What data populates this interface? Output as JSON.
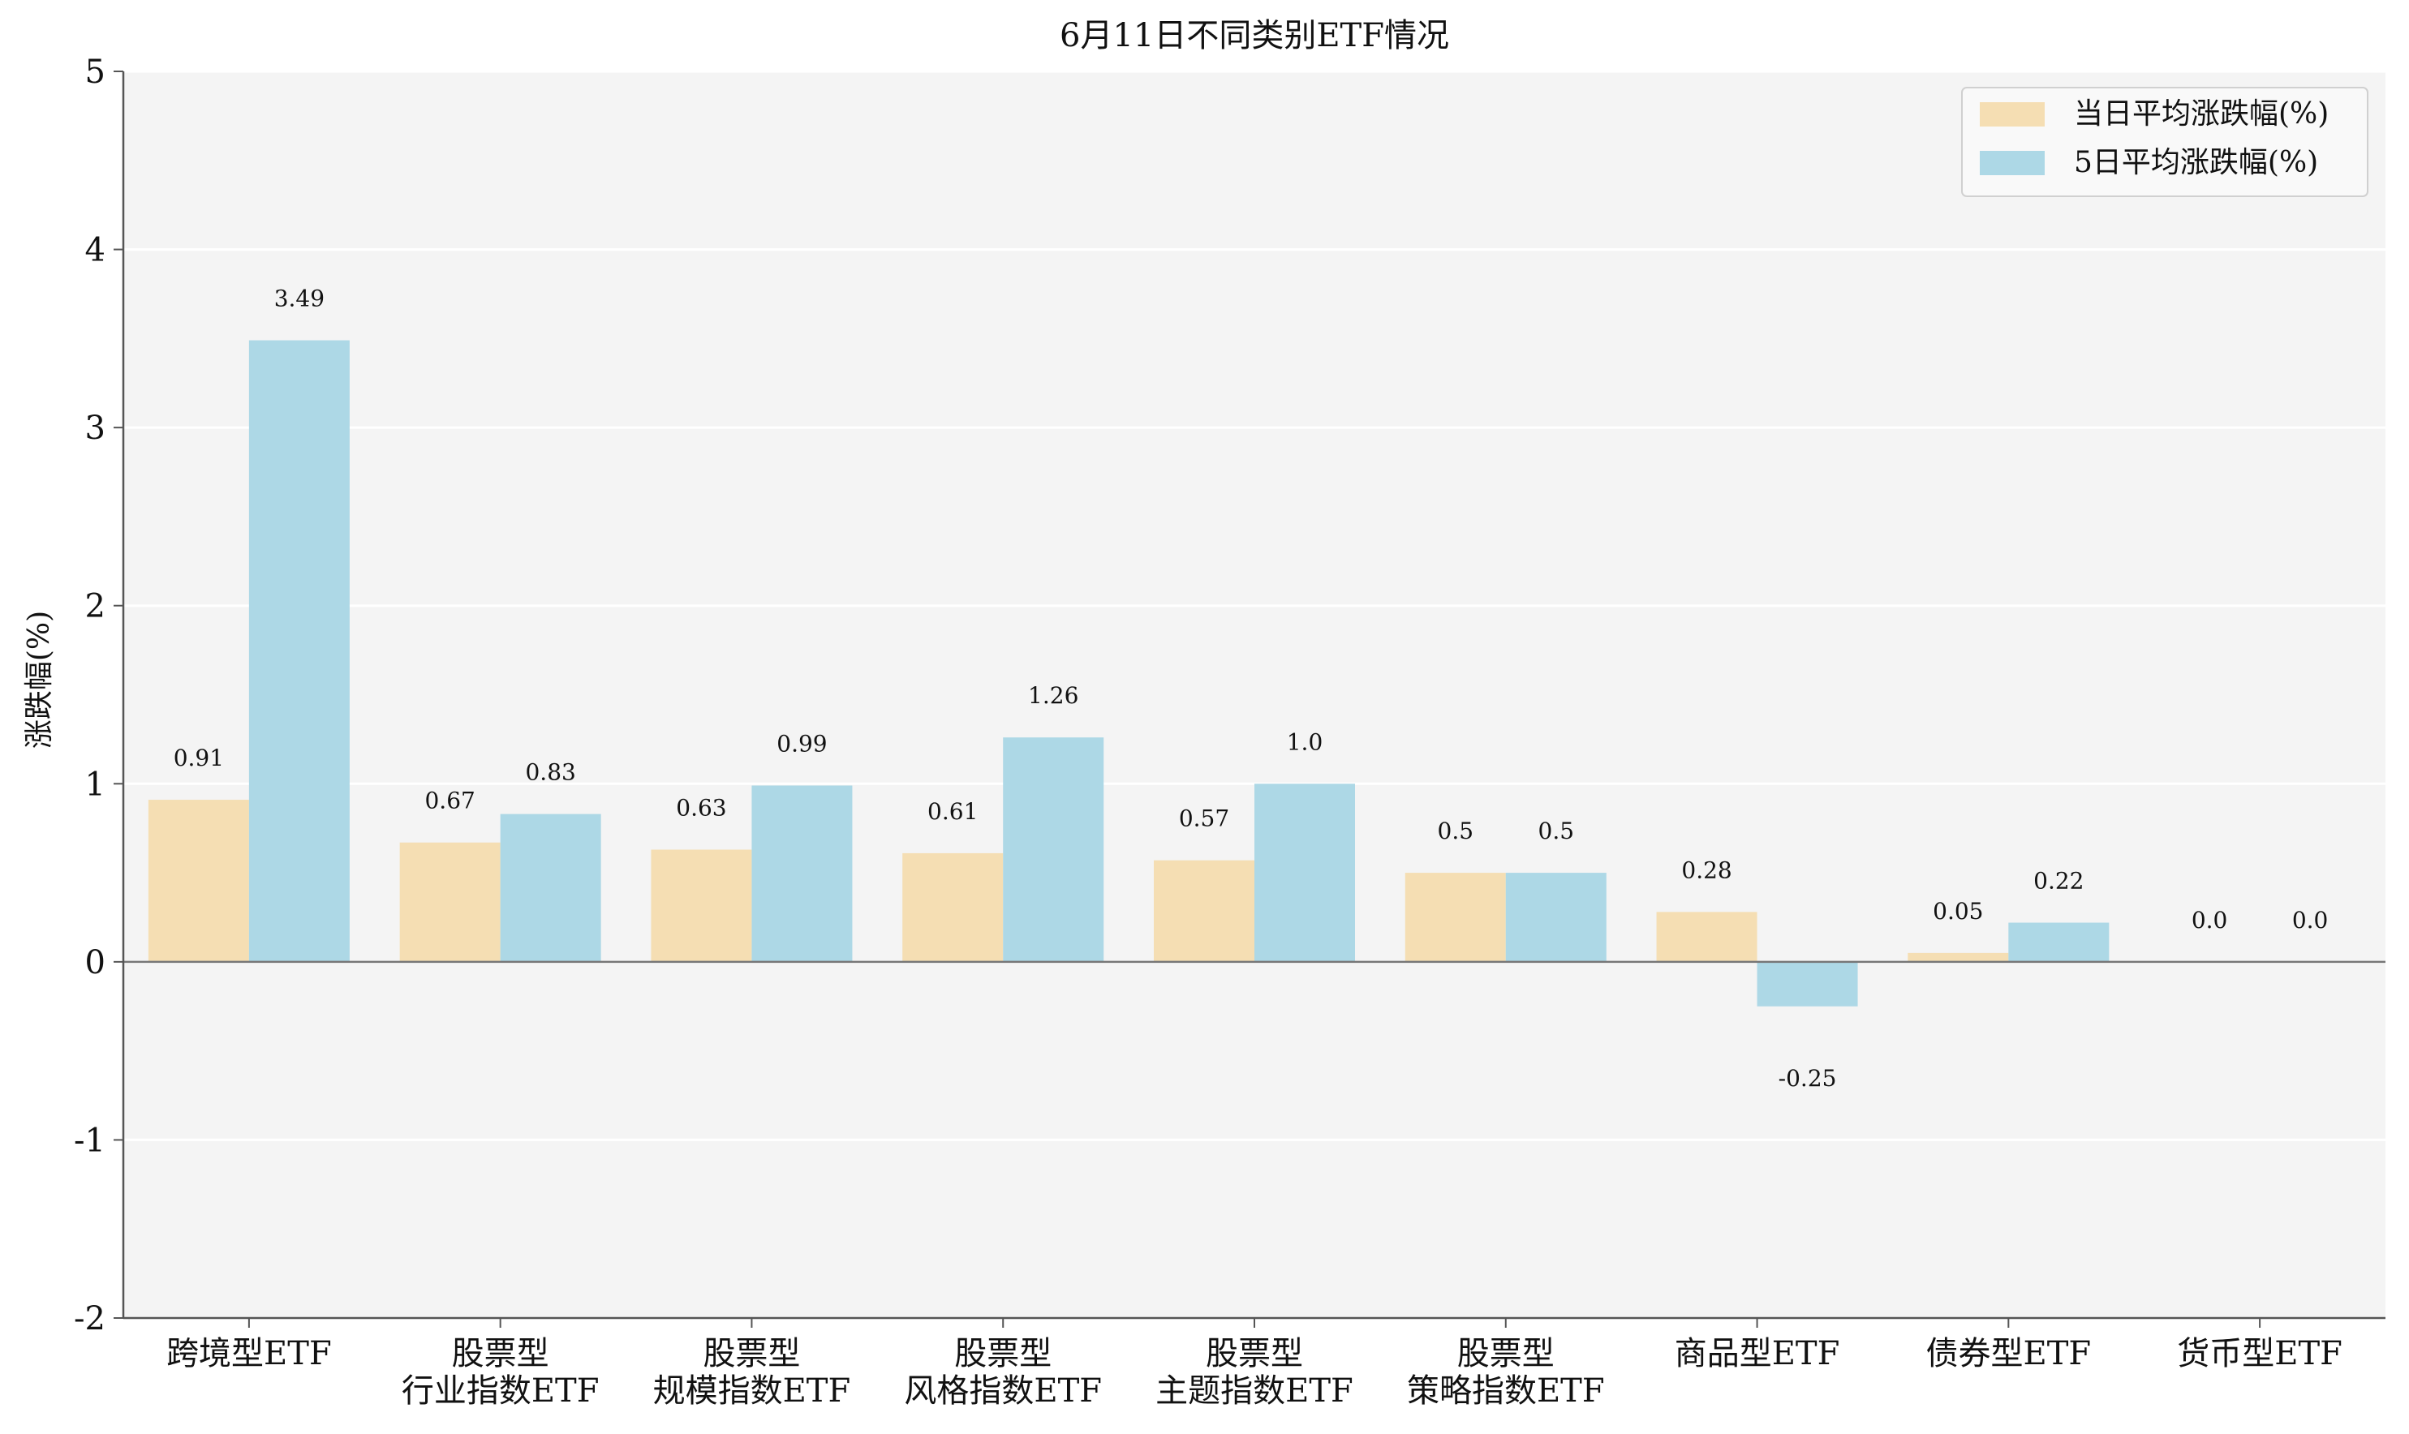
{
  "chart_data": {
    "type": "bar",
    "title": "6月11日不同类别ETF情况",
    "ylabel": "涨跌幅(%)",
    "xlabel": "",
    "ylim": [
      -2,
      5
    ],
    "yticks": [
      "-2",
      "-1",
      "0",
      "1",
      "2",
      "3",
      "4",
      "5"
    ],
    "grid": true,
    "legend_position": "top-right",
    "categories": [
      [
        "跨境型ETF"
      ],
      [
        "股票型",
        "行业指数ETF"
      ],
      [
        "股票型",
        "规模指数ETF"
      ],
      [
        "股票型",
        "风格指数ETF"
      ],
      [
        "股票型",
        "主题指数ETF"
      ],
      [
        "股票型",
        "策略指数ETF"
      ],
      [
        "商品型ETF"
      ],
      [
        "债券型ETF"
      ],
      [
        "货币型ETF"
      ]
    ],
    "series": [
      {
        "name": "当日平均涨跌幅(%)",
        "color": "#f5deb3",
        "values": [
          0.91,
          0.67,
          0.63,
          0.61,
          0.57,
          0.5,
          0.28,
          0.05,
          0.0
        ],
        "labels": [
          "0.91",
          "0.67",
          "0.63",
          "0.61",
          "0.57",
          "0.5",
          "0.28",
          "0.05",
          "0.0"
        ]
      },
      {
        "name": "5日平均涨跌幅(%)",
        "color": "#add8e6",
        "values": [
          3.49,
          0.83,
          0.99,
          1.26,
          1.0,
          0.5,
          -0.25,
          0.22,
          0.0
        ],
        "labels": [
          "3.49",
          "0.83",
          "0.99",
          "1.26",
          "1.0",
          "0.5",
          "-0.25",
          "0.22",
          "0.0"
        ]
      }
    ]
  }
}
